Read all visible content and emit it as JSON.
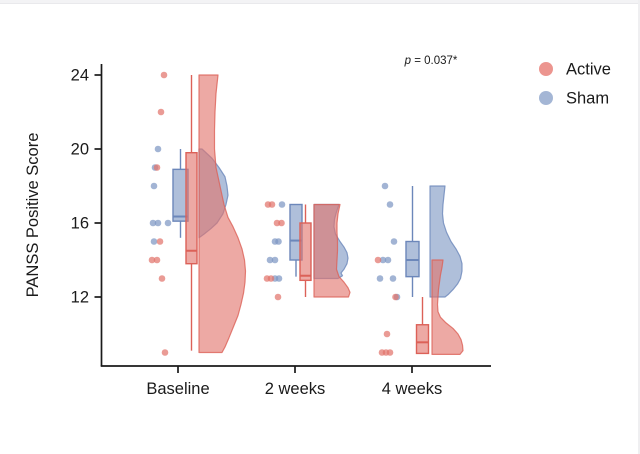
{
  "figure": {
    "annotation": {
      "stat_label": "p",
      "stat_rest": " = 0.037*"
    },
    "legend": [
      {
        "label": "Active",
        "color": "#E9837B"
      },
      {
        "label": "Sham",
        "color": "#94A9CE"
      }
    ]
  },
  "chart_data": {
    "type": "raincloud (jittered scatter + box plot + half-violin)",
    "title": "",
    "xlabel": "",
    "ylabel": "PANSS Positive Score",
    "yticks": [
      24,
      20,
      16,
      12
    ],
    "ylim": [
      8.3,
      24.7
    ],
    "categories": [
      "Baseline",
      "2 weeks",
      "4 weeks"
    ],
    "grid": false,
    "legend_position": "top-right",
    "annotation": "p = 0.037*",
    "series": [
      {
        "name": "Sham",
        "color": "#7E97C3",
        "stroke": "#6C87BA",
        "groups": [
          {
            "category": "Baseline",
            "points": [
              {
                "j": -20,
                "v": 20
              },
              {
                "j": -23,
                "v": 19
              },
              {
                "j": -24,
                "v": 18
              },
              {
                "j": -25,
                "v": 16
              },
              {
                "j": -20,
                "v": 16
              },
              {
                "j": -10,
                "v": 16
              },
              {
                "j": -24,
                "v": 15
              }
            ],
            "box": {
              "q1": 16.1,
              "median": 16.35,
              "q3": 18.9,
              "whisker_low": 15.2,
              "whisker_high": 20,
              "offset": 2.5,
              "width": 15
            },
            "violin": {
              "edge_offset": 21,
              "profile": [
                [
                  20,
                  3
                ],
                [
                  19.5,
                  13
                ],
                [
                  19,
                  20
                ],
                [
                  18.5,
                  26
                ],
                [
                  18,
                  28
                ],
                [
                  17.5,
                  29
                ],
                [
                  17,
                  27
                ],
                [
                  16.5,
                  24
                ],
                [
                  16,
                  18
                ],
                [
                  15.7,
                  12
                ],
                [
                  15.4,
                  5
                ],
                [
                  15.2,
                  0
                ]
              ]
            }
          },
          {
            "category": "2 weeks",
            "points": [
              {
                "j": -13,
                "v": 17
              },
              {
                "j": -20,
                "v": 15
              },
              {
                "j": -16.5,
                "v": 15
              },
              {
                "j": -25,
                "v": 14
              },
              {
                "j": -20,
                "v": 14
              },
              {
                "j": -20,
                "v": 13
              },
              {
                "j": -16,
                "v": 13
              }
            ],
            "box": {
              "q1": 14,
              "median": 15.05,
              "q3": 17,
              "whisker_low": 13.1,
              "whisker_high": 17,
              "offset": 1,
              "width": 12
            },
            "violin": {
              "edge_offset": 19,
              "profile": [
                [
                  17,
                  25
                ],
                [
                  16.6,
                  22.5
                ],
                [
                  16.2,
                  20.5
                ],
                [
                  15.8,
                  20
                ],
                [
                  15.4,
                  21.5
                ],
                [
                  15,
                  26
                ],
                [
                  14.7,
                  30
                ],
                [
                  14.4,
                  33
                ],
                [
                  14.1,
                  34
                ],
                [
                  13.8,
                  33
                ],
                [
                  13.5,
                  30
                ],
                [
                  13.3,
                  27
                ],
                [
                  13.15,
                  28.5
                ],
                [
                  13,
                  24
                ]
              ]
            }
          },
          {
            "category": "4 weeks",
            "points": [
              {
                "j": -27,
                "v": 18
              },
              {
                "j": -22,
                "v": 17
              },
              {
                "j": -18,
                "v": 15
              },
              {
                "j": -29,
                "v": 14
              },
              {
                "j": -24,
                "v": 14
              },
              {
                "j": -32,
                "v": 13
              },
              {
                "j": -19,
                "v": 13
              },
              {
                "j": -15,
                "v": 12
              }
            ],
            "box": {
              "q1": 13.1,
              "median": 14,
              "q3": 15,
              "whisker_low": 12,
              "whisker_high": 18,
              "offset": 0.5,
              "width": 13
            },
            "violin": {
              "edge_offset": 18,
              "profile": [
                [
                  18,
                  15
                ],
                [
                  17.5,
                  14
                ],
                [
                  17,
                  13
                ],
                [
                  16.5,
                  12.5
                ],
                [
                  16,
                  13.5
                ],
                [
                  15.5,
                  16.5
                ],
                [
                  15,
                  21
                ],
                [
                  14.6,
                  26
                ],
                [
                  14.2,
                  30
                ],
                [
                  13.8,
                  32
                ],
                [
                  13.4,
                  32
                ],
                [
                  13,
                  30.5
                ],
                [
                  12.7,
                  27.5
                ],
                [
                  12.4,
                  23
                ],
                [
                  12.15,
                  18.5
                ],
                [
                  12,
                  15
                ]
              ]
            }
          }
        ]
      },
      {
        "name": "Active",
        "color": "#E2756C",
        "stroke": "#DC6158",
        "groups": [
          {
            "category": "Baseline",
            "points": [
              {
                "j": -14,
                "v": 24
              },
              {
                "j": -17,
                "v": 22
              },
              {
                "j": -21,
                "v": 19
              },
              {
                "j": -18,
                "v": 15
              },
              {
                "j": -26,
                "v": 14
              },
              {
                "j": -21,
                "v": 14
              },
              {
                "j": -16,
                "v": 13
              },
              {
                "j": -13,
                "v": 9
              }
            ],
            "box": {
              "q1": 13.8,
              "median": 14.5,
              "q3": 19.8,
              "whisker_low": 9.1,
              "whisker_high": 24,
              "offset": 13.5,
              "width": 11
            },
            "violin": {
              "edge_offset": 21,
              "profile": [
                [
                  24,
                  19
                ],
                [
                  23,
                  17
                ],
                [
                  22,
                  16
                ],
                [
                  21,
                  15.5
                ],
                [
                  20,
                  15.5
                ],
                [
                  19,
                  17
                ],
                [
                  18,
                  21
                ],
                [
                  17,
                  25
                ],
                [
                  16.3,
                  29
                ],
                [
                  15.8,
                  34
                ],
                [
                  15.2,
                  39
                ],
                [
                  14.6,
                  43
                ],
                [
                  14,
                  45.5
                ],
                [
                  13.4,
                  46.5
                ],
                [
                  12.8,
                  46
                ],
                [
                  12.2,
                  44.5
                ],
                [
                  11.6,
                  42
                ],
                [
                  11,
                  39
                ],
                [
                  10.4,
                  34.5
                ],
                [
                  9.8,
                  30
                ],
                [
                  9.3,
                  26
                ],
                [
                  9,
                  23
                ]
              ]
            }
          },
          {
            "category": "2 weeks",
            "points": [
              {
                "j": -27,
                "v": 17
              },
              {
                "j": -23,
                "v": 17
              },
              {
                "j": -18,
                "v": 16
              },
              {
                "j": -13.5,
                "v": 16
              },
              {
                "j": -28,
                "v": 13
              },
              {
                "j": -24,
                "v": 13
              },
              {
                "j": -17,
                "v": 12
              }
            ],
            "box": {
              "q1": 12.9,
              "median": 13.15,
              "q3": 16,
              "whisker_low": 12,
              "whisker_high": 17,
              "offset": 10.5,
              "width": 11
            },
            "violin": {
              "edge_offset": 19,
              "profile": [
                [
                  17,
                  26
                ],
                [
                  16.5,
                  24
                ],
                [
                  16,
                  23
                ],
                [
                  15.5,
                  23
                ],
                [
                  15,
                  23.5
                ],
                [
                  14.5,
                  23.5
                ],
                [
                  14,
                  23
                ],
                [
                  13.5,
                  22.5
                ],
                [
                  13.1,
                  25
                ],
                [
                  12.8,
                  30
                ],
                [
                  12.5,
                  34
                ],
                [
                  12.25,
                  36
                ],
                [
                  12,
                  34.5
                ]
              ]
            }
          },
          {
            "category": "4 weeks",
            "points": [
              {
                "j": -34,
                "v": 14
              },
              {
                "j": -16.5,
                "v": 12
              },
              {
                "j": -25,
                "v": 10
              },
              {
                "j": -30,
                "v": 9
              },
              {
                "j": -26,
                "v": 9
              },
              {
                "j": -22,
                "v": 9
              }
            ],
            "box": {
              "q1": 8.95,
              "median": 9.55,
              "q3": 10.5,
              "whisker_low": 8.95,
              "whisker_high": 12,
              "offset": 10.5,
              "width": 12
            },
            "violin": {
              "edge_offset": 20,
              "profile": [
                [
                  14,
                  11
                ],
                [
                  13.6,
                  10
                ],
                [
                  13.2,
                  8.5
                ],
                [
                  12.8,
                  7.5
                ],
                [
                  12.4,
                  6.5
                ],
                [
                  12,
                  6
                ],
                [
                  11.6,
                  5.5
                ],
                [
                  11.2,
                  6
                ],
                [
                  10.9,
                  8.5
                ],
                [
                  10.6,
                  14
                ],
                [
                  10.3,
                  21
                ],
                [
                  10,
                  26
                ],
                [
                  9.7,
                  29
                ],
                [
                  9.4,
                  30.5
                ],
                [
                  9.1,
                  31
                ],
                [
                  8.9,
                  28
                ]
              ]
            }
          }
        ]
      }
    ]
  }
}
